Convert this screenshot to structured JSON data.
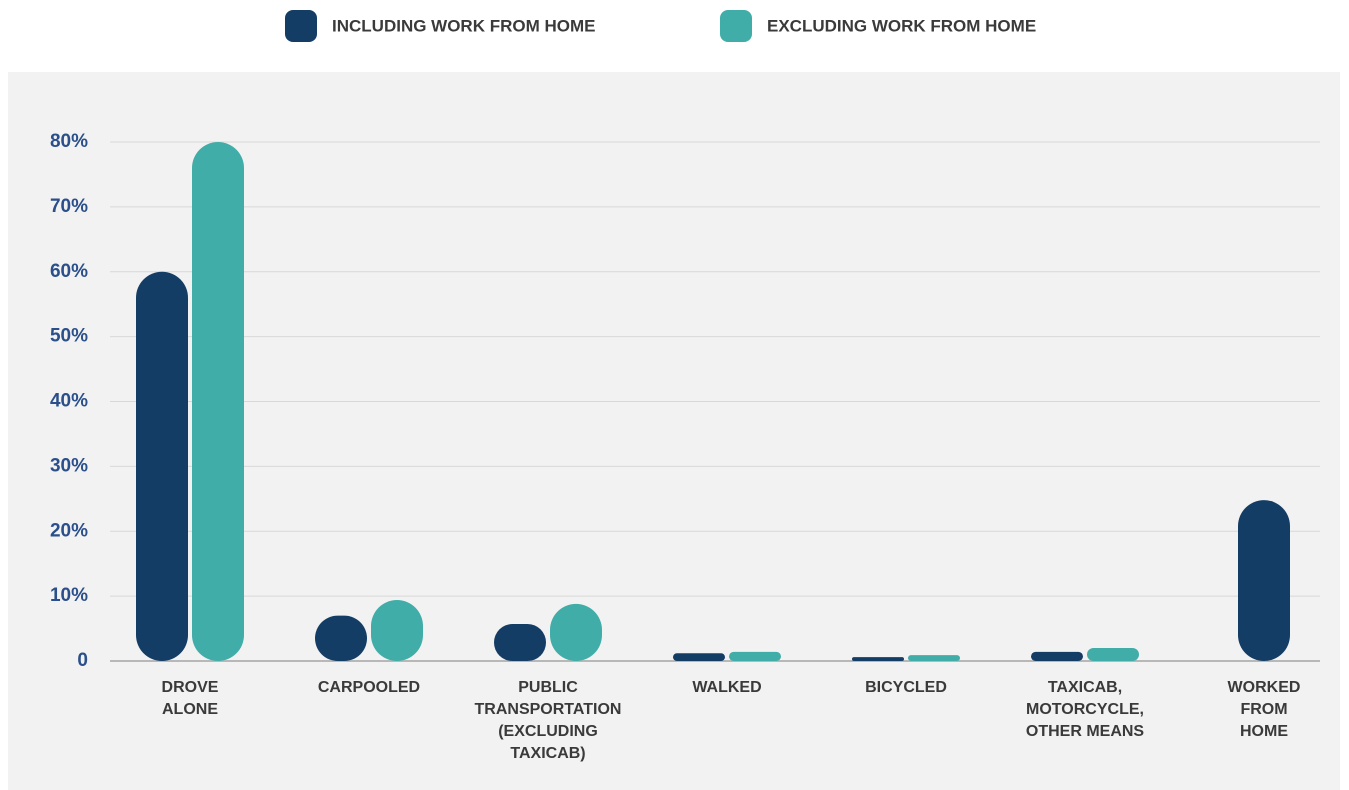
{
  "chart_data": {
    "type": "bar",
    "categories": [
      "DROVE\nALONE",
      "CARPOOLED",
      "PUBLIC\nTRANSPORTATION\n(EXCLUDING\nTAXICAB)",
      "WALKED",
      "BICYCLED",
      "TAXICAB,\nMOTORCYCLE,\nOTHER MEANS",
      "WORKED\nFROM\nHOME"
    ],
    "series": [
      {
        "name": "INCLUDING WORK FROM HOME",
        "color": "#143d66",
        "values": [
          60,
          7,
          5.7,
          1.2,
          0.6,
          1.4,
          24.8
        ]
      },
      {
        "name": "EXCLUDING WORK FROM HOME",
        "color": "#41ada8",
        "values": [
          80,
          9.4,
          8.8,
          1.4,
          0.9,
          2.0,
          null
        ]
      }
    ],
    "ylim": [
      0,
      80
    ],
    "yticks": [
      0,
      {
        "value": 10,
        "label": "10%"
      },
      {
        "value": 20,
        "label": "20%"
      },
      {
        "value": 30,
        "label": "30%"
      },
      {
        "value": 40,
        "label": "40%"
      },
      {
        "value": 50,
        "label": "50%"
      },
      {
        "value": 60,
        "label": "60%"
      },
      {
        "value": 70,
        "label": "70%"
      },
      {
        "value": 80,
        "label": "80%"
      }
    ],
    "grid": true,
    "legend": "top"
  }
}
